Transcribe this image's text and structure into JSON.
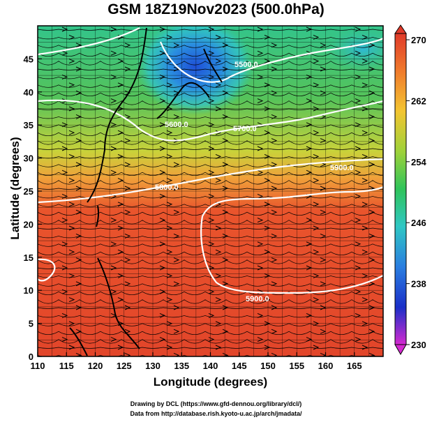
{
  "title": "GSM 18Z19Nov2023 (500.0hPa)",
  "x_axis": {
    "label": "Longitude (degrees)",
    "ticks": [
      "110",
      "115",
      "120",
      "125",
      "130",
      "135",
      "140",
      "145",
      "150",
      "155",
      "160",
      "165"
    ]
  },
  "y_axis": {
    "label": "Latitude  (degrees)",
    "ticks": [
      "0",
      "5",
      "10",
      "15",
      "20",
      "25",
      "30",
      "35",
      "40",
      "45"
    ]
  },
  "colorbar": {
    "ticks": [
      "270",
      "262",
      "254",
      "246",
      "238",
      "230"
    ],
    "min": 230,
    "max": 270
  },
  "contour_labels": [
    "5900.0",
    "5900.0",
    "5800.0",
    "5700.0",
    "5600.0",
    "5500.0"
  ],
  "credits": [
    "Drawing by DCL (https://www.gfd-dennou.org/library/dcl/)",
    "Data from http://database.rish.kyoto-u.ac.jp/arch/jmadata/"
  ],
  "map_data": {
    "lon_range": [
      110,
      170
    ],
    "lat_range": [
      0,
      50
    ],
    "field": "temperature (K)",
    "contour_field": "geopotential height (m)",
    "overlay": "wind streamlines"
  }
}
